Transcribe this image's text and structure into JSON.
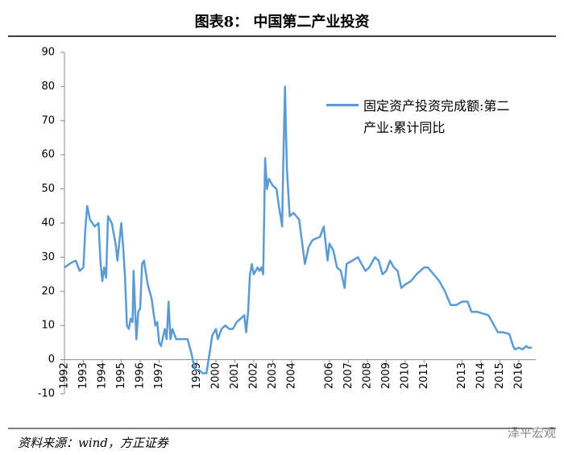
{
  "chart_data": {
    "type": "line",
    "title": "图表8： 中国第二产业投资",
    "source": "资料来源：wind，方正证券",
    "watermark": "泽平宏观",
    "x": [
      1992.0,
      1992.4,
      1992.6,
      1992.8,
      1993.0,
      1993.1,
      1993.2,
      1993.35,
      1993.6,
      1993.8,
      1993.9,
      1994.0,
      1994.1,
      1994.2,
      1994.3,
      1994.5,
      1994.7,
      1994.8,
      1995.0,
      1995.1,
      1995.2,
      1995.3,
      1995.4,
      1995.5,
      1995.6,
      1995.65,
      1995.8,
      1995.9,
      1996.0,
      1996.1,
      1996.2,
      1996.4,
      1996.6,
      1996.8,
      1996.9,
      1997.0,
      1997.1,
      1997.3,
      1997.4,
      1997.5,
      1997.6,
      1997.7,
      1997.9,
      1998.2,
      1998.5,
      1998.7,
      1998.9,
      1999.1,
      1999.3,
      1999.5,
      1999.7,
      1999.8,
      2000.0,
      2000.1,
      2000.3,
      2000.5,
      2000.7,
      2000.9,
      2001.1,
      2001.3,
      2001.5,
      2001.6,
      2001.7,
      2001.8,
      2001.9,
      2002.0,
      2002.2,
      2002.3,
      2002.4,
      2002.5,
      2002.6,
      2002.7,
      2002.8,
      2003.0,
      2003.2,
      2003.3,
      2003.5,
      2003.55,
      2003.65,
      2003.75,
      2003.9,
      2004.1,
      2004.4,
      2004.7,
      2004.9,
      2005.1,
      2005.5,
      2005.7,
      2005.9,
      2006.0,
      2006.2,
      2006.4,
      2006.6,
      2006.8,
      2006.9,
      2007.2,
      2007.5,
      2007.7,
      2007.9,
      2008.1,
      2008.4,
      2008.6,
      2008.8,
      2009.0,
      2009.2,
      2009.4,
      2009.6,
      2009.8,
      2010.0,
      2010.3,
      2010.6,
      2010.8,
      2011.0,
      2011.2,
      2011.5,
      2011.8,
      2012.1,
      2012.4,
      2012.7,
      2013.0,
      2013.3,
      2013.5,
      2013.8,
      2014.1,
      2014.4,
      2014.7,
      2014.9,
      2015.2,
      2015.5,
      2015.7,
      2015.8,
      2016.0,
      2016.2,
      2016.4,
      2016.5,
      2016.7
    ],
    "series": [
      {
        "name": "固定资产投资完成额:第二产业:累计同比",
        "color": "#5b9bd5",
        "values": [
          27,
          28.5,
          29,
          26,
          27,
          38,
          45,
          41,
          39,
          40,
          29,
          23,
          27,
          24,
          42,
          40,
          34,
          29,
          40,
          33,
          24,
          10,
          9,
          12,
          11,
          26,
          6,
          14,
          15,
          28,
          29,
          22,
          18,
          10,
          11,
          5,
          4,
          9,
          6,
          17,
          6,
          9,
          6,
          6,
          6,
          2,
          -3,
          -3,
          -4,
          -4,
          3,
          7,
          9,
          6,
          9,
          10,
          9,
          9,
          11,
          12,
          13,
          8,
          14,
          25,
          28,
          25,
          27,
          26,
          27,
          25,
          59,
          50,
          53,
          51,
          50,
          46,
          39,
          55,
          80,
          56,
          42,
          43,
          41,
          28,
          33,
          35,
          36,
          39,
          29,
          34,
          32,
          27,
          26,
          21,
          28,
          29,
          30,
          28,
          26,
          27,
          30,
          29,
          25,
          26,
          29,
          27,
          26,
          21,
          22,
          23,
          25,
          26,
          27,
          27,
          25,
          23,
          20,
          16,
          16,
          17,
          17,
          14,
          14,
          13.5,
          13,
          10,
          8,
          8,
          7.5,
          4,
          3,
          3.5,
          3,
          4,
          3.5,
          3.5
        ]
      }
    ],
    "xlim": [
      1992,
      2016.9
    ],
    "xticks": [
      1992,
      1993,
      1994,
      1995,
      1996,
      1997,
      1999,
      2000,
      2001,
      2002,
      2003,
      2004,
      2006,
      2007,
      2008,
      2009,
      2010,
      2011,
      2013,
      2014,
      2015,
      2016
    ],
    "ylim": [
      -10,
      90
    ],
    "yticks": [
      -10,
      0,
      10,
      20,
      30,
      40,
      50,
      60,
      70,
      80,
      90
    ],
    "grid": false
  }
}
